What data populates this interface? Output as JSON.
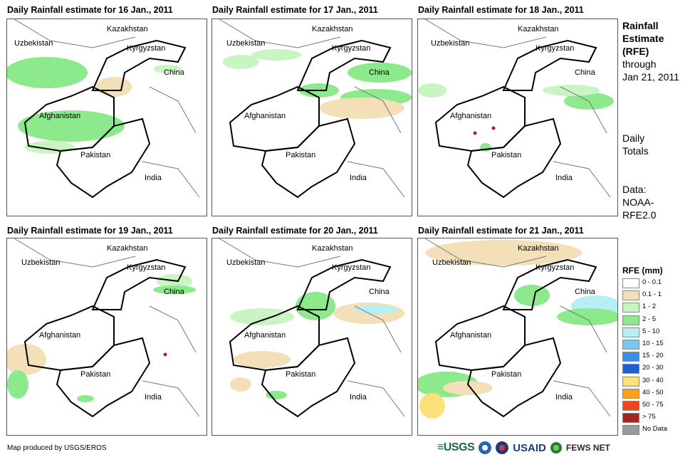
{
  "panels": [
    {
      "title": "Daily Rainfall estimate for 16 Jan., 2011"
    },
    {
      "title": "Daily Rainfall estimate for 17 Jan., 2011"
    },
    {
      "title": "Daily Rainfall estimate for 18 Jan., 2011"
    },
    {
      "title": "Daily Rainfall estimate for 19 Jan., 2011"
    },
    {
      "title": "Daily Rainfall estimate for 20 Jan., 2011"
    },
    {
      "title": "Daily Rainfall estimate for 21 Jan., 2011"
    }
  ],
  "places": {
    "kazakhstan": "Kazakhstan",
    "uzbekistan": "Uzbekistan",
    "kyrgyzstan": "Kyrgyzstan",
    "china": "China",
    "afghanistan": "Afghanistan",
    "pakistan": "Pakistan",
    "india": "India"
  },
  "sidebar": {
    "title_line1": "Rainfall",
    "title_line2": "Estimate",
    "title_line3": "(RFE)",
    "through": "through",
    "date": "Jan 21, 2011",
    "daily1": "Daily",
    "daily2": "Totals",
    "data1": "Data:",
    "data2": "NOAA-",
    "data3": "RFE2.0"
  },
  "legend": {
    "title": "RFE (mm)",
    "items": [
      {
        "label": "0 - 0.1",
        "color": "#ffffff"
      },
      {
        "label": "0.1 - 1",
        "color": "#f3dfb8"
      },
      {
        "label": "1 - 2",
        "color": "#c9f5c2"
      },
      {
        "label": "2 - 5",
        "color": "#8ce98c"
      },
      {
        "label": "5 - 10",
        "color": "#b6f0f4"
      },
      {
        "label": "10 - 15",
        "color": "#7cc5ef"
      },
      {
        "label": "15 - 20",
        "color": "#3e8ee6"
      },
      {
        "label": "20 - 30",
        "color": "#1e5fd2"
      },
      {
        "label": "30 - 40",
        "color": "#fde07a"
      },
      {
        "label": "40 - 50",
        "color": "#fca21a"
      },
      {
        "label": "50 - 75",
        "color": "#f0441a"
      },
      {
        "label": "> 75",
        "color": "#a5261f"
      },
      {
        "label": "No Data",
        "color": "#9a9a9a"
      }
    ]
  },
  "footer": {
    "credit": "Map produced by USGS/EROS",
    "usgs": "≡USGS",
    "usaid": "USAID",
    "fewsnet": "FEWS NET"
  }
}
